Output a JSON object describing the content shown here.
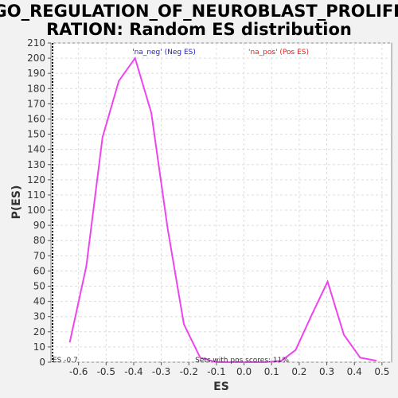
{
  "chart_data": {
    "type": "line",
    "title_lines": [
      "GO_REGULATION_OF_NEUROBLAST_PROLIFE",
      "RATION: Random ES distribution"
    ],
    "xlabel": "ES",
    "ylabel": "P(ES)",
    "xlim": [
      -0.7,
      0.535
    ],
    "ylim": [
      0,
      210
    ],
    "x_ticks": [
      -0.6,
      -0.5,
      -0.4,
      -0.3,
      -0.2,
      -0.1,
      0.0,
      0.1,
      0.2,
      0.3,
      0.4,
      0.5
    ],
    "x_tick_labels": [
      "-0.6",
      "-0.5",
      "-0.4",
      "-0.3",
      "-0.2",
      "-0.1",
      "0.0",
      "0.1",
      "0.2",
      "0.3",
      "0.4",
      "0.5"
    ],
    "y_ticks": [
      0,
      10,
      20,
      30,
      40,
      50,
      60,
      70,
      80,
      90,
      100,
      110,
      120,
      130,
      140,
      150,
      160,
      170,
      180,
      190,
      200,
      210
    ],
    "y_tick_labels": [
      "0",
      "10",
      "20",
      "30",
      "40",
      "50",
      "60",
      "70",
      "80",
      "90",
      "100",
      "110",
      "120",
      "130",
      "140",
      "150",
      "160",
      "170",
      "180",
      "190",
      "200",
      "210"
    ],
    "grid": true,
    "series": [
      {
        "color": "#ee44ee",
        "x": [
          -0.632,
          -0.572,
          -0.513,
          -0.454,
          -0.395,
          -0.336,
          -0.277,
          -0.218,
          -0.159,
          -0.1,
          -0.041,
          0.018,
          0.077,
          0.136,
          0.187,
          0.245,
          0.303,
          0.362,
          0.421,
          0.48
        ],
        "y": [
          13,
          63,
          148,
          185,
          200,
          164,
          88,
          25,
          3,
          0,
          0,
          0,
          0,
          1,
          8,
          31,
          53,
          18,
          3,
          1
        ]
      }
    ],
    "legend": [
      {
        "label": "'na_neg' (Neg ES)",
        "color": "#2222cc"
      },
      {
        "label": "'na_pos' (Pos ES)",
        "color": "#dd2222"
      }
    ],
    "observed_es": -0.7,
    "observed_es_label": "ES -0.7",
    "annotation": "Sets with pos scores: 11%"
  }
}
